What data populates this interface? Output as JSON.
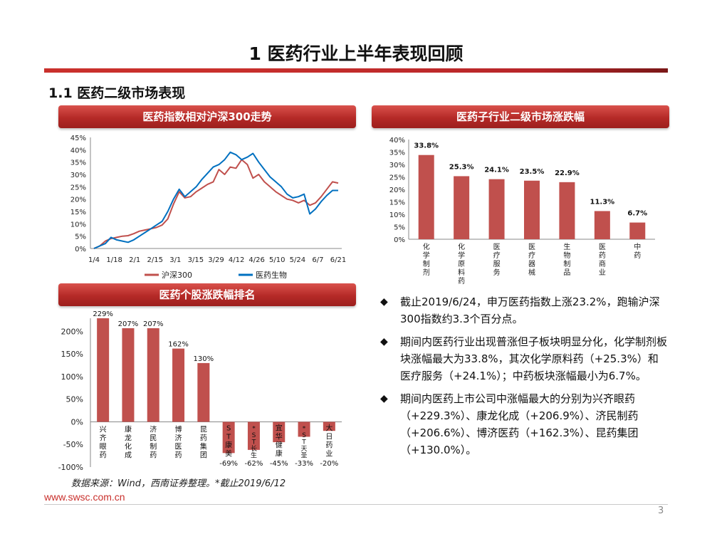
{
  "title": "1 医药行业上半年表现回顾",
  "section": "1.1 医药二级市场表现",
  "colors": {
    "red": "#c0504d",
    "blue": "#0070c0",
    "header": "#b52a27"
  },
  "panels": {
    "index_chart": "医药指数相对沪深300走势",
    "sub_chart": "医药子行业二级市场涨跌幅",
    "stock_chart": "医药个股涨跌幅排名"
  },
  "chart_data": [
    {
      "type": "line",
      "title": "医药指数相对沪深300走势",
      "xlabel": "",
      "ylabel": "",
      "x_ticks": [
        "1/4",
        "1/18",
        "2/1",
        "2/15",
        "3/1",
        "3/15",
        "3/29",
        "4/12",
        "4/26",
        "5/10",
        "5/24",
        "6/7",
        "6/21"
      ],
      "y_ticks": [
        "0%",
        "5%",
        "10%",
        "15%",
        "20%",
        "25%",
        "30%",
        "35%",
        "40%",
        "45%"
      ],
      "ylim": [
        0,
        45
      ],
      "legend_position": "bottom",
      "series": [
        {
          "name": "沪深300",
          "color": "#c0504d",
          "values": [
            0,
            1,
            3,
            4,
            4.5,
            5,
            5.2,
            6,
            7,
            7.5,
            8,
            8.5,
            9.5,
            12,
            18,
            23,
            20.5,
            21,
            23,
            24.5,
            26,
            27,
            32,
            30,
            33,
            32.5,
            36,
            34,
            28.5,
            30,
            27,
            25,
            23,
            21.5,
            20,
            19.5,
            18.5,
            19.5,
            17.5,
            18.5,
            21,
            24,
            27,
            26.5
          ]
        },
        {
          "name": "医药生物",
          "color": "#0070c0",
          "values": [
            0,
            1,
            2,
            4.5,
            3.5,
            3,
            2.5,
            3.5,
            5,
            6.5,
            8,
            9.5,
            11,
            15,
            20,
            24,
            21,
            23,
            25,
            28,
            30.5,
            33,
            34,
            36,
            39,
            38,
            36,
            37,
            38.5,
            35,
            32,
            29,
            27,
            25,
            22,
            20.5,
            21,
            22,
            14,
            16,
            19,
            21.5,
            23.5,
            23.5
          ]
        }
      ]
    },
    {
      "type": "bar",
      "title": "医药子行业二级市场涨跌幅",
      "categories": [
        "化学制剂",
        "化学原料药",
        "医疗服务",
        "医疗器械",
        "生物制品",
        "医药商业",
        "中药"
      ],
      "values": [
        33.8,
        25.3,
        24.1,
        23.5,
        22.9,
        11.3,
        6.7
      ],
      "value_labels": [
        "33.8%",
        "25.3%",
        "24.1%",
        "23.5%",
        "22.9%",
        "11.3%",
        "6.7%"
      ],
      "y_ticks": [
        "0%",
        "5%",
        "10%",
        "15%",
        "20%",
        "25%",
        "30%",
        "35%",
        "40%"
      ],
      "ylim": [
        0,
        40
      ],
      "color": "#c0504d"
    },
    {
      "type": "bar",
      "title": "医药个股涨跌幅排名",
      "categories": [
        "兴齐眼药",
        "康龙化成",
        "济民制药",
        "博济医药",
        "昆药集团",
        "ST康美",
        "*ST长生",
        "宜华健康",
        "*ST天圣",
        "大日药业"
      ],
      "values": [
        229,
        207,
        207,
        162,
        130,
        -69,
        -62,
        -45,
        -33,
        -20
      ],
      "value_labels": [
        "229%",
        "207%",
        "207%",
        "162%",
        "130%",
        "-69%",
        "-62%",
        "-45%",
        "-33%",
        "-20%"
      ],
      "y_ticks": [
        "-100%",
        "-50%",
        "0%",
        "50%",
        "100%",
        "150%",
        "200%"
      ],
      "ylim": [
        -100,
        229
      ],
      "color": "#c0504d"
    }
  ],
  "bullets": [
    "截止2019/6/24，申万医药指数上涨23.2%，跑输沪深300指数约3.3个百分点。",
    "期间内医药行业出现普涨但子板块明显分化，化学制剂板块涨幅最大为33.8%，其次化学原料药（+25.3%）和医疗服务（+24.1%）；中药板块涨幅最小为6.7%。",
    "期间内医药上市公司中涨幅最大的分别为兴齐眼药（+229.3%）、康龙化成（+206.9%）、济民制药（+206.6%）、博济医药（+162.3%）、昆药集团（+130.0%）。"
  ],
  "bullet_mark": "◆",
  "source": "数据来源：Wind，西南证券整理。*截止2019/6/12",
  "footer_url": "www.swsc.com.cn",
  "page_number": "3"
}
